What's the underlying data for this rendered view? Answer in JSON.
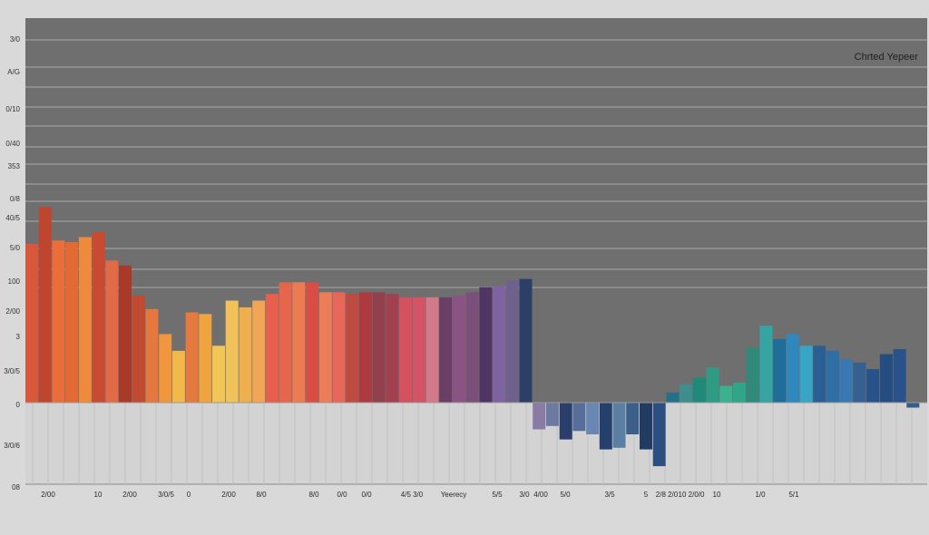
{
  "chart_data": {
    "type": "bar",
    "title": "Chrted Yepeer",
    "xlabel": "",
    "ylabel": "",
    "ylim": [
      -50,
      230
    ],
    "grid": true,
    "legend": "none",
    "y_tick_labels": [
      "3/0",
      "A/G",
      "0/10",
      "0/40",
      "353",
      "0/8",
      "40/5",
      "5/0",
      "100",
      "2/00",
      "3",
      "3/0/5",
      "0",
      "3/0/6",
      "08"
    ],
    "x_tick_labels": [
      "2/00",
      "10",
      "2/00",
      "3/0/5",
      "0",
      "2/00",
      "8/0",
      "8/0",
      "0/0",
      "0/0",
      "4/5 3/0",
      "Yeerecy",
      "5/5",
      "3/0",
      "4/00",
      "5/0",
      "3/5",
      "5",
      "2/8 2/0",
      "10 2/0/0",
      "10",
      "1/0",
      "5/1"
    ],
    "series": [
      {
        "values": [
          95,
          117,
          97,
          96,
          99,
          102,
          85,
          82,
          64,
          56,
          41,
          31,
          54,
          53,
          34,
          61,
          57,
          61,
          65,
          72,
          72,
          72,
          66,
          66,
          65,
          66,
          66,
          65,
          63,
          63,
          63,
          63,
          64,
          66,
          69,
          70,
          73,
          74,
          -16,
          -14,
          -22,
          -17,
          -19,
          -28,
          -27,
          -19,
          -28,
          -38,
          6,
          11,
          15,
          21,
          10,
          12,
          33,
          46,
          38,
          41,
          34,
          34,
          31,
          26,
          24,
          20,
          29,
          32,
          -3
        ],
        "colors": [
          "#d9573b",
          "#c0452e",
          "#ea6d3a",
          "#e46a34",
          "#ef8a3c",
          "#c84a30",
          "#e06b46",
          "#a93a2a",
          "#c14a31",
          "#e5783f",
          "#f0963d",
          "#f2b84a",
          "#e67940",
          "#f0a440",
          "#f2c557",
          "#f2c25a",
          "#eeb04f",
          "#f0a557",
          "#e95f4d",
          "#e5664d",
          "#eb7c52",
          "#d94d45",
          "#eb7e59",
          "#e9665a",
          "#bf4a3f",
          "#ad3a40",
          "#92404d",
          "#a3404f",
          "#d4525f",
          "#d45466",
          "#d27a8a",
          "#6b3e66",
          "#8a5383",
          "#7a4f7a",
          "#4f3566",
          "#7e63a0",
          "#6e628c",
          "#2c3f66",
          "#8a7aa6",
          "#6b7a9e",
          "#2a3e6c",
          "#566e99",
          "#6a86b2",
          "#26406e",
          "#5b7ea3",
          "#3c5f8a",
          "#213b63",
          "#2d4e80",
          "#246f8a",
          "#3d8f8e",
          "#1f8a7a",
          "#2e9c85",
          "#3ab18f",
          "#2fa58a",
          "#2f8a7b",
          "#35a5a4",
          "#1f6e99",
          "#2e87bd",
          "#39a5c6",
          "#2a5f94",
          "#2e6fa6",
          "#3a78b4",
          "#35608f",
          "#28528a",
          "#254d80",
          "#29518c",
          "#365c8a"
        ]
      }
    ]
  }
}
